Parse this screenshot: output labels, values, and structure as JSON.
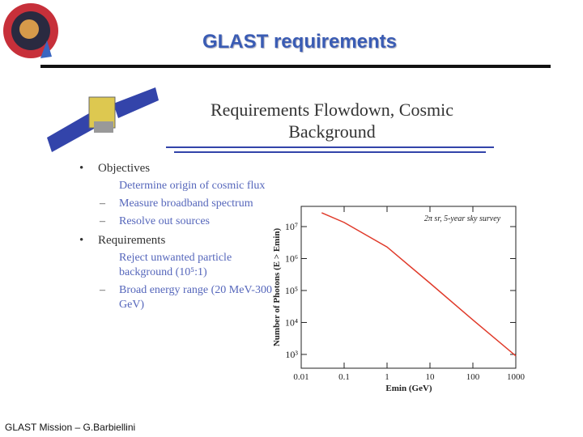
{
  "header": {
    "title": "GLAST requirements"
  },
  "figure_heading": "Requirements Flowdown, Cosmic Background",
  "bullets": [
    {
      "text": "Objectives",
      "items": [
        "Determine origin of cosmic flux",
        "Measure broadband spectrum",
        "Resolve out sources"
      ]
    },
    {
      "text": "Requirements",
      "items": [
        "Reject unwanted particle background (10⁵:1)",
        "Broad energy range (20 MeV-300 GeV)"
      ]
    }
  ],
  "footer": "GLAST Mission – G.Barbiellini",
  "chart_data": {
    "type": "line",
    "x_label": "Emin (GeV)",
    "y_label": "Number of Photons (E > Emin)",
    "annotation": "2π sr, 5-year sky survey",
    "x": [
      0.03,
      0.1,
      1,
      10,
      100,
      1000
    ],
    "series": [
      {
        "name": null,
        "color": "#e03a2a",
        "values": [
          27000000,
          13500000,
          2300000,
          170000,
          12000,
          900
        ]
      }
    ],
    "xlim": [
      0.01,
      1000
    ],
    "ylim": [
      370,
      43000000
    ],
    "xticks": [
      0.01,
      0.1,
      1,
      10,
      100,
      1000
    ],
    "yticks": [
      {
        "value": 1000,
        "label": "10³"
      },
      {
        "value": 10000,
        "label": "10⁴"
      },
      {
        "value": 100000,
        "label": "10⁵"
      },
      {
        "value": 1000000,
        "label": "10⁶"
      },
      {
        "value": 10000000,
        "label": "10⁷"
      }
    ],
    "log_x": true,
    "log_y": true
  }
}
